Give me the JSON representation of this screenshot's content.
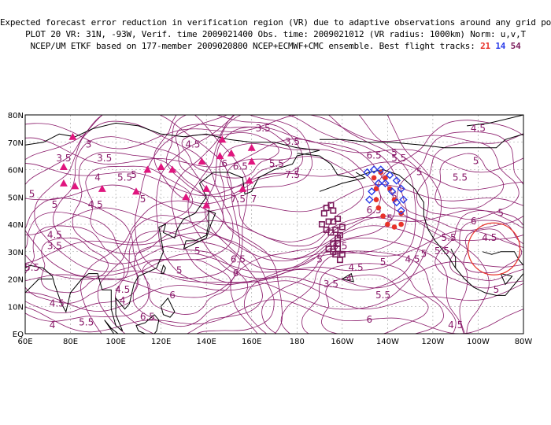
{
  "header": {
    "line1": "Expected forecast error reduction in verification region (VR) due to adaptive observations around any grid point.",
    "line2": "PLOT 20 VR: 31N, -93W, Verif. time 2009021400 Obs. time: 2009021012 (VR radius: 1000km) Norm: u,v,T",
    "line3_prefix": "NCEP/UM ETKF based on 177-member 2009020800 NCEP+ECMWF+CMC ensemble. Best flight tracks:",
    "tracks": [
      {
        "label": "21",
        "color": "#e8322a"
      },
      {
        "label": "14",
        "color": "#2a3ce8"
      },
      {
        "label": "54",
        "color": "#7a1a5a"
      }
    ]
  },
  "map": {
    "lon_labels": [
      "60E",
      "80E",
      "100E",
      "120E",
      "140E",
      "160E",
      "180",
      "160W",
      "140W",
      "120W",
      "100W",
      "80W"
    ],
    "lat_labels": [
      "EQ",
      "10N",
      "20N",
      "30N",
      "40N",
      "50N",
      "60N",
      "70N",
      "80N"
    ],
    "contour_labels": [
      {
        "t": "3.5",
        "lon": 165,
        "lat": 74
      },
      {
        "t": "4.5",
        "lon": 134,
        "lat": 68
      },
      {
        "t": "4.5",
        "lon": 260,
        "lat": 74
      },
      {
        "t": "3.5",
        "lon": 77,
        "lat": 63
      },
      {
        "t": "3.5",
        "lon": 95,
        "lat": 63
      },
      {
        "t": "3",
        "lon": 88,
        "lat": 68
      },
      {
        "t": "4",
        "lon": 92,
        "lat": 56
      },
      {
        "t": "5.5",
        "lon": 104,
        "lat": 56
      },
      {
        "t": "5",
        "lon": 108,
        "lat": 57
      },
      {
        "t": "6",
        "lon": 148,
        "lat": 61
      },
      {
        "t": "6.5",
        "lon": 155,
        "lat": 60
      },
      {
        "t": "3.5",
        "lon": 178,
        "lat": 69
      },
      {
        "t": "5.5",
        "lon": 171,
        "lat": 61
      },
      {
        "t": "7.5",
        "lon": 178,
        "lat": 57
      },
      {
        "t": "7",
        "lon": 180,
        "lat": 58
      },
      {
        "t": "7.5",
        "lon": 154,
        "lat": 48
      },
      {
        "t": "7",
        "lon": 161,
        "lat": 48
      },
      {
        "t": "6.5",
        "lon": 214,
        "lat": 64
      },
      {
        "t": "5",
        "lon": 223,
        "lat": 65
      },
      {
        "t": "5.5",
        "lon": 252,
        "lat": 56
      },
      {
        "t": "5",
        "lon": 259,
        "lat": 62
      },
      {
        "t": "5",
        "lon": 63,
        "lat": 50
      },
      {
        "t": "5",
        "lon": 73,
        "lat": 46
      },
      {
        "t": "4.5",
        "lon": 91,
        "lat": 46
      },
      {
        "t": "5",
        "lon": 112,
        "lat": 48
      },
      {
        "t": "4.5",
        "lon": 73,
        "lat": 35
      },
      {
        "t": "3.5",
        "lon": 73,
        "lat": 31
      },
      {
        "t": "5.5",
        "lon": 63,
        "lat": 23
      },
      {
        "t": "5",
        "lon": 136,
        "lat": 29
      },
      {
        "t": "6.5",
        "lon": 154,
        "lat": 26
      },
      {
        "t": "6",
        "lon": 153,
        "lat": 21
      },
      {
        "t": "5",
        "lon": 190,
        "lat": 26
      },
      {
        "t": "4.5",
        "lon": 206,
        "lat": 23
      },
      {
        "t": "4",
        "lon": 203,
        "lat": 19
      },
      {
        "t": "3.5",
        "lon": 195,
        "lat": 17
      },
      {
        "t": "6.5",
        "lon": 199,
        "lat": 31
      },
      {
        "t": "5",
        "lon": 218,
        "lat": 25
      },
      {
        "t": "4.5",
        "lon": 231,
        "lat": 26
      },
      {
        "t": "5.5",
        "lon": 244,
        "lat": 29
      },
      {
        "t": "5",
        "lon": 236,
        "lat": 28
      },
      {
        "t": "5.5",
        "lon": 218,
        "lat": 13
      },
      {
        "t": "6",
        "lon": 212,
        "lat": 4
      },
      {
        "t": "6",
        "lon": 258,
        "lat": 40
      },
      {
        "t": "5",
        "lon": 270,
        "lat": 43
      },
      {
        "t": "4.5",
        "lon": 265,
        "lat": 34
      },
      {
        "t": "4.5",
        "lon": 74,
        "lat": 10
      },
      {
        "t": "4",
        "lon": 72,
        "lat": 2
      },
      {
        "t": "5.5",
        "lon": 87,
        "lat": 3
      },
      {
        "t": "4.5",
        "lon": 103,
        "lat": 15
      },
      {
        "t": "4",
        "lon": 103,
        "lat": 11
      },
      {
        "t": "5",
        "lon": 128,
        "lat": 22
      },
      {
        "t": "6",
        "lon": 125,
        "lat": 13
      },
      {
        "t": "6.5",
        "lon": 114,
        "lat": 5
      },
      {
        "t": "4.5",
        "lon": 250,
        "lat": 2
      },
      {
        "t": "5",
        "lon": 268,
        "lat": 15
      },
      {
        "t": "5.5",
        "lon": 247,
        "lat": 34
      },
      {
        "t": "5",
        "lon": 234,
        "lat": 58
      },
      {
        "t": "5.5",
        "lon": 225,
        "lat": 63
      },
      {
        "t": "6.5",
        "lon": 214,
        "lat": 44
      },
      {
        "t": "5",
        "lon": 221,
        "lat": 41
      },
      {
        "t": "5",
        "lon": 223,
        "lat": 49
      }
    ]
  },
  "colors": {
    "contour": "#8a1a6a",
    "coast": "#000000",
    "grid": "#9a9a9a",
    "triangle": "#e0157e",
    "track21": "#e8322a",
    "track14": "#2a3ce8",
    "track54": "#7a1a5a",
    "vr_circle": "#e8322a"
  }
}
